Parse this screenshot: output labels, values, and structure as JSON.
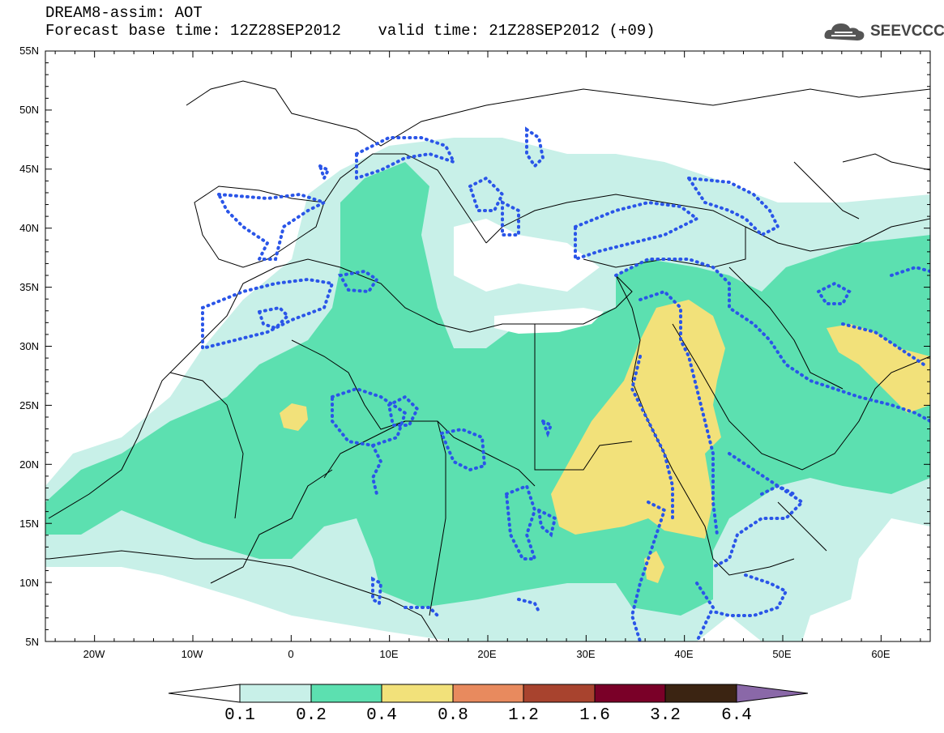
{
  "header": {
    "title": "DREAM8-assim: AOT",
    "base_time_label": "Forecast base time: 12Z28SEP2012",
    "valid_time_label": "valid time: 21Z28SEP2012 (+09)"
  },
  "logo": {
    "text": "SEEVCCC",
    "icon": "cloud-icon"
  },
  "map": {
    "lat_labels": [
      "55N",
      "50N",
      "45N",
      "40N",
      "35N",
      "30N",
      "25N",
      "20N",
      "15N",
      "10N",
      "5N"
    ],
    "lon_labels": [
      "20W",
      "10W",
      "0",
      "10E",
      "20E",
      "30E",
      "40E",
      "50E",
      "60E"
    ]
  },
  "colorbar": {
    "levels": [
      "0.1",
      "0.2",
      "0.4",
      "0.8",
      "1.2",
      "1.6",
      "3.2",
      "6.4"
    ],
    "colors": [
      "#ffffff",
      "#c8f0e8",
      "#5ce0b0",
      "#f2e17a",
      "#e88a5e",
      "#a8432e",
      "#7a0028",
      "#3b2412",
      "#8a68a8"
    ]
  }
}
